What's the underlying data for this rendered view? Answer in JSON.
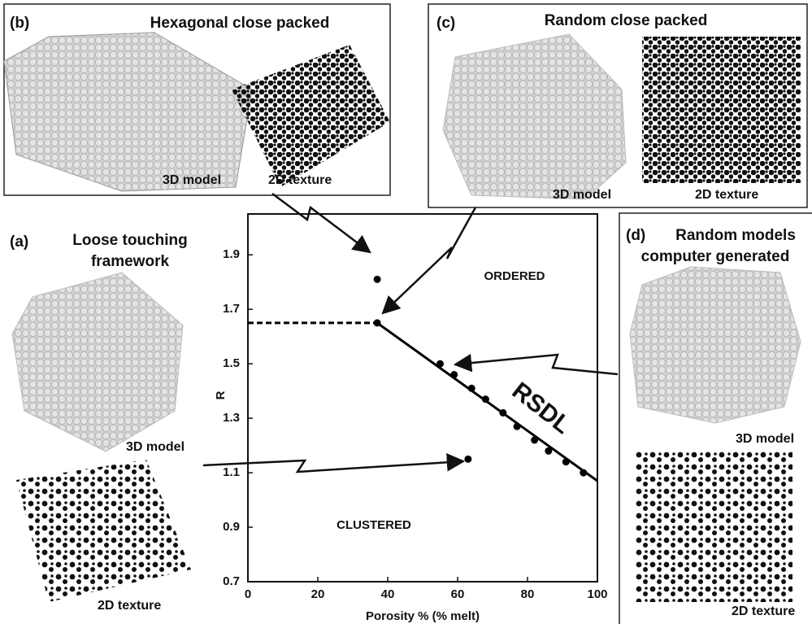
{
  "chart_data": {
    "type": "scatter",
    "x_label": "Porosity % (% melt)",
    "y_label": "R",
    "xlim": [
      0,
      100
    ],
    "ylim": [
      0.7,
      2.05
    ],
    "xticks": [
      0,
      20,
      40,
      60,
      80,
      100
    ],
    "yticks": [
      0.7,
      0.9,
      1.1,
      1.3,
      1.5,
      1.7,
      1.9
    ],
    "color": "#000000",
    "series": [
      {
        "x": [
          37,
          37,
          63
        ],
        "values": [
          1.81,
          1.65,
          1.15
        ]
      },
      {
        "x": [
          55,
          59,
          64,
          68,
          73,
          77,
          82,
          86,
          91,
          96
        ],
        "values": [
          1.5,
          1.46,
          1.41,
          1.37,
          1.32,
          1.27,
          1.22,
          1.18,
          1.14,
          1.1
        ]
      }
    ],
    "lines": [
      {
        "x": [
          37,
          100
        ],
        "values": [
          1.65,
          1.07
        ],
        "style": "solid"
      },
      {
        "x": [
          0,
          37
        ],
        "values": [
          1.65,
          1.65
        ],
        "style": "dashed"
      }
    ],
    "annotations": [
      "ORDERED",
      "CLUSTERED",
      "RSDL"
    ]
  },
  "panels": {
    "b": {
      "label": "(b)",
      "title": [
        "Hexagonal close packed"
      ],
      "model": "3D model",
      "texture": "2D texture"
    },
    "c": {
      "label": "(c)",
      "title": [
        "Random close packed"
      ],
      "model": "3D model",
      "texture": "2D texture"
    },
    "a": {
      "label": "(a)",
      "title": [
        "Loose touching",
        "framework"
      ],
      "model": "3D model",
      "texture": "2D texture"
    },
    "d": {
      "label": "(d)",
      "title": [
        "Random models",
        "computer generated"
      ],
      "model": "3D model",
      "texture": "2D texture"
    }
  }
}
